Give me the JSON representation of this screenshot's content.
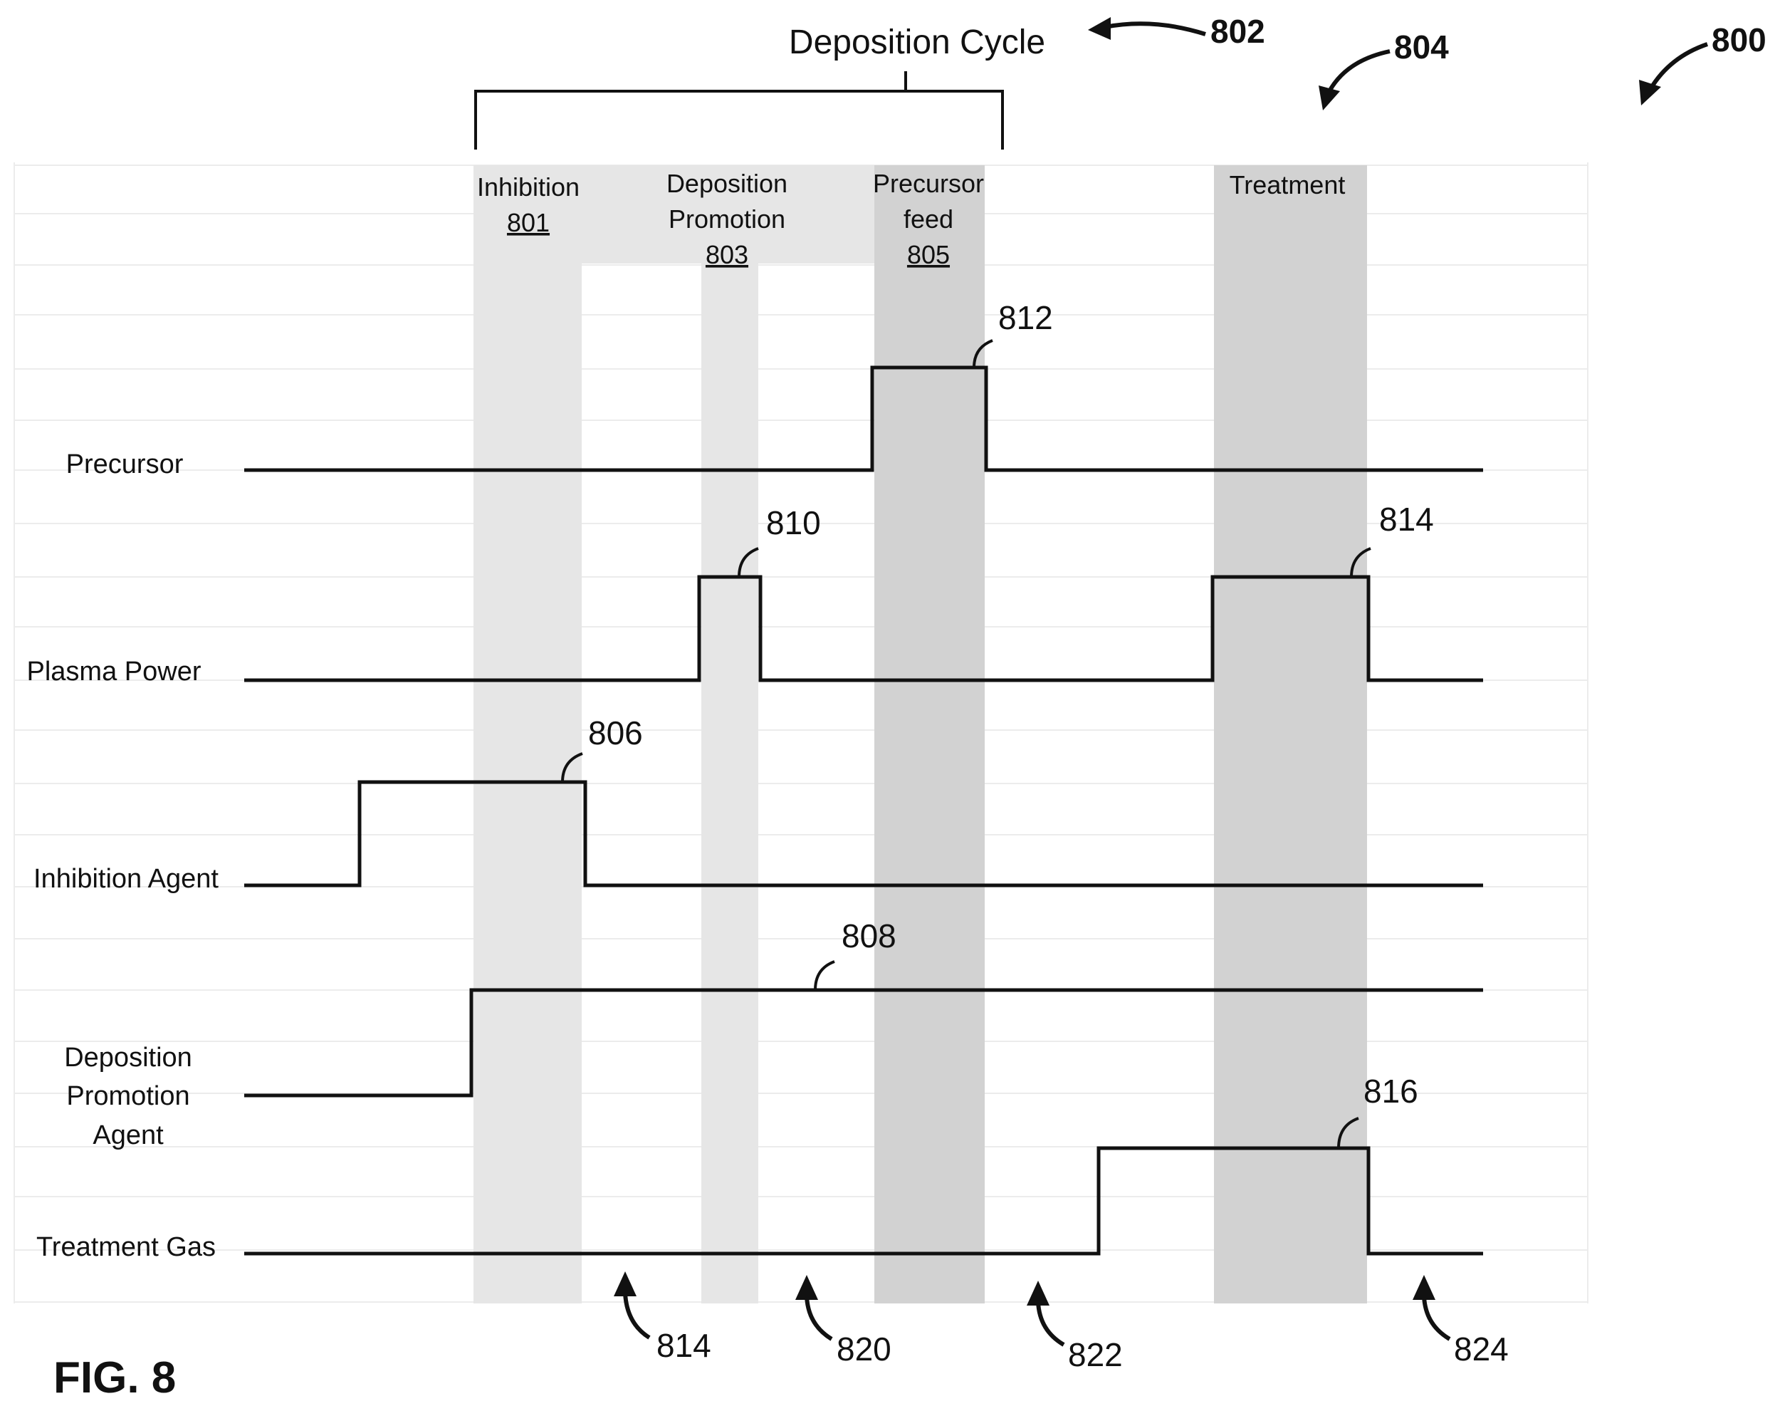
{
  "figure_label": "FIG. 8",
  "ref_800": "800",
  "ref_802": "802",
  "ref_804": "804",
  "cycle_label": "Deposition Cycle",
  "phases": {
    "inhibition": {
      "line1": "Inhibition",
      "ref": "801"
    },
    "deposition_promotion": {
      "line1": "Deposition",
      "line2": "Promotion",
      "ref": "803"
    },
    "precursor_feed": {
      "line1": "Precursor",
      "line2": "feed",
      "ref": "805"
    },
    "treatment": {
      "line1": "Treatment"
    }
  },
  "signals": {
    "precursor": {
      "label": "Precursor",
      "ref": "812"
    },
    "plasma_power": {
      "label": "Plasma Power",
      "ref_a": "810",
      "ref_b": "814"
    },
    "inhibition_agent": {
      "label": "Inhibition Agent",
      "ref": "806"
    },
    "deposition_promotion_agent": {
      "label_line1": "Deposition",
      "label_line2": "Promotion",
      "label_line3": "Agent",
      "ref": "808"
    },
    "treatment_gas": {
      "label": "Treatment Gas",
      "ref": "816"
    }
  },
  "bottom_refs": {
    "a": "814",
    "b": "820",
    "c": "822",
    "d": "824"
  },
  "colors": {
    "shade_light": "#e6e6e6",
    "shade_dark": "#d2d2d2",
    "line": "#111111"
  }
}
